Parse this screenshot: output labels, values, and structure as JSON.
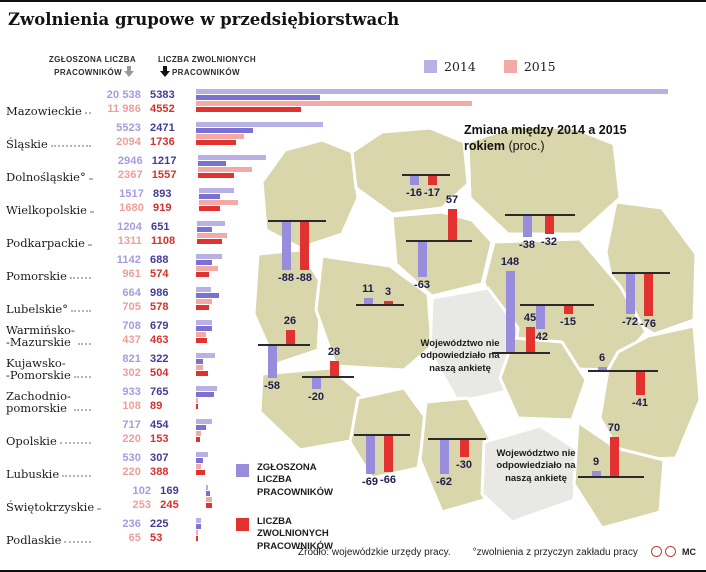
{
  "title": "Zwolnienia grupowe w przedsiębiorstwach",
  "header": {
    "col1_line1": "ZGŁOSZONA LICZBA",
    "col1_line2": "PRACOWNIKÓW",
    "col2_line1": "LICZBA ZWOLNIONYCH",
    "col2_line2": "PRACOWNIKÓW",
    "legend": [
      {
        "label": "2014",
        "color_key": "reported_2014"
      },
      {
        "label": "2015",
        "color_key": "reported_2015"
      }
    ]
  },
  "colors": {
    "reported_2014": "#b9b1e6",
    "laidoff_2014": "#7b71d1",
    "reported_2015": "#f3aaa7",
    "laidoff_2015": "#e23230",
    "map_purple": "#978ddc",
    "map_red": "#e23230",
    "map_fill": "#d9d6ac",
    "map_nodata": "#e8e8e4",
    "text_reported_2014": "#a59ce1",
    "text_laidoff_2014": "#433c96",
    "text_reported_2015": "#ee9e9b",
    "text_laidoff_2015": "#d7302c"
  },
  "regions": [
    {
      "name_lines": [
        "Mazowieckie"
      ],
      "r2014": "20 538",
      "z2014": "5383",
      "r2015": "11 986",
      "z2015": "4552"
    },
    {
      "name_lines": [
        "Śląskie"
      ],
      "r2014": "5523",
      "z2014": "2471",
      "r2015": "2094",
      "z2015": "1736"
    },
    {
      "name_lines": [
        "Dolnośląskie°"
      ],
      "r2014": "2946",
      "z2014": "1217",
      "r2015": "2367",
      "z2015": "1557"
    },
    {
      "name_lines": [
        "Wielkopolskie"
      ],
      "r2014": "1517",
      "z2014": "893",
      "r2015": "1680",
      "z2015": "919"
    },
    {
      "name_lines": [
        "Podkarpackie"
      ],
      "r2014": "1204",
      "z2014": "651",
      "r2015": "1311",
      "z2015": "1108"
    },
    {
      "name_lines": [
        "Pomorskie"
      ],
      "r2014": "1142",
      "z2014": "688",
      "r2015": "961",
      "z2015": "574"
    },
    {
      "name_lines": [
        "Lubelskie°"
      ],
      "r2014": "664",
      "z2014": "986",
      "r2015": "705",
      "z2015": "578"
    },
    {
      "name_lines": [
        "Warmińsko-",
        "-Mazurskie"
      ],
      "r2014": "708",
      "z2014": "679",
      "r2015": "437",
      "z2015": "463"
    },
    {
      "name_lines": [
        "Kujawsko-",
        "-Pomorskie"
      ],
      "r2014": "821",
      "z2014": "322",
      "r2015": "302",
      "z2015": "504"
    },
    {
      "name_lines": [
        "Zachodnio-",
        "pomorskie"
      ],
      "r2014": "933",
      "z2014": "765",
      "r2015": "108",
      "z2015": "89"
    },
    {
      "name_lines": [
        "Opolskie"
      ],
      "r2014": "717",
      "z2014": "454",
      "r2015": "220",
      "z2015": "153"
    },
    {
      "name_lines": [
        "Lubuskie"
      ],
      "r2014": "530",
      "z2014": "307",
      "r2015": "220",
      "z2015": "388"
    },
    {
      "name_lines": [
        "Świętokrzyskie"
      ],
      "r2014": "102",
      "z2014": "169",
      "r2015": "253",
      "z2015": "245"
    },
    {
      "name_lines": [
        "Podlaskie"
      ],
      "r2014": "236",
      "z2014": "225",
      "r2015": "65",
      "z2015": "53"
    }
  ],
  "map": {
    "title_line1": "Zmiana między 2014 a 2015",
    "title_bold2": "rokiem",
    "title_suffix": "(proc.)",
    "no_response_note": "Województwo nie odpowiedziało na naszą ankietę",
    "legend": [
      {
        "label": "ZGŁOSZONA LICZBA PRACOWNIKÓW",
        "color_key": "map_purple"
      },
      {
        "label": "LICZBA ZWOLNIONYCH PRACOWNIKÓW",
        "color_key": "map_red"
      }
    ]
  },
  "map_bars": [
    {
      "id": "zachodniopomorskie",
      "reported_change": -88,
      "laid_change": -88
    },
    {
      "id": "pomorskie",
      "reported_change": -16,
      "laid_change": -17
    },
    {
      "id": "warminsko-mazurskie",
      "reported_change": -38,
      "laid_change": -32
    },
    {
      "id": "podlaskie",
      "reported_change": -72,
      "laid_change": -76
    },
    {
      "id": "kujawsko-pomorskie",
      "reported_change": -63,
      "laid_change": 57
    },
    {
      "id": "mazowieckie",
      "reported_change": -42,
      "laid_change": -15
    },
    {
      "id": "lubelskie",
      "reported_change": 6,
      "laid_change": -41
    },
    {
      "id": "lubuskie",
      "reported_change": -58,
      "laid_change": 26
    },
    {
      "id": "wielkopolskie",
      "reported_change": 11,
      "laid_change": 3
    },
    {
      "id": "dolnoslaskie",
      "reported_change": -20,
      "laid_change": 28
    },
    {
      "id": "opolskie",
      "reported_change": -69,
      "laid_change": -66
    },
    {
      "id": "slaskie",
      "reported_change": -62,
      "laid_change": -30
    },
    {
      "id": "swietokrzyskie",
      "reported_change": 148,
      "laid_change": 45
    },
    {
      "id": "podkarpackie",
      "reported_change": 9,
      "laid_change": 70
    }
  ],
  "chart_data": [
    {
      "type": "bar",
      "orientation": "horizontal",
      "title": "Zwolnienia grupowe w przedsiębiorstwach",
      "legend": [
        "2014",
        "2015"
      ],
      "categories": [
        "Mazowieckie",
        "Śląskie",
        "Dolnośląskie",
        "Wielkopolskie",
        "Podkarpackie",
        "Pomorskie",
        "Lubelskie",
        "Warmińsko-Mazurskie",
        "Kujawsko-Pomorskie",
        "Zachodniopomorskie",
        "Opolskie",
        "Lubuskie",
        "Świętokrzyskie",
        "Podlaskie"
      ],
      "series": [
        {
          "name": "Zgłoszona liczba pracowników 2014",
          "values": [
            20538,
            5523,
            2946,
            1517,
            1204,
            1142,
            664,
            708,
            821,
            933,
            717,
            530,
            102,
            236
          ]
        },
        {
          "name": "Liczba zwolnionych pracowników 2014",
          "values": [
            5383,
            2471,
            1217,
            893,
            651,
            688,
            986,
            679,
            322,
            765,
            454,
            307,
            169,
            225
          ]
        },
        {
          "name": "Zgłoszona liczba pracowników 2015",
          "values": [
            11986,
            2094,
            2367,
            1680,
            1311,
            961,
            705,
            437,
            302,
            108,
            220,
            220,
            253,
            65
          ]
        },
        {
          "name": "Liczba zwolnionych pracowników 2015",
          "values": [
            4552,
            1736,
            1557,
            919,
            1108,
            574,
            578,
            463,
            504,
            89,
            153,
            388,
            245,
            53
          ]
        }
      ]
    },
    {
      "type": "bar",
      "title": "Zmiana między 2014 a 2015 rokiem (proc.)",
      "categories": [
        "Zachodniopomorskie",
        "Pomorskie",
        "Warmińsko-Mazurskie",
        "Podlaskie",
        "Kujawsko-Pomorskie",
        "Mazowieckie",
        "Lubelskie",
        "Lubuskie",
        "Wielkopolskie",
        "Dolnośląskie",
        "Opolskie",
        "Śląskie",
        "Świętokrzyskie",
        "Podkarpackie"
      ],
      "series": [
        {
          "name": "Zgłoszona liczba pracowników (zmiana proc.)",
          "values": [
            -88,
            -16,
            -38,
            -72,
            -63,
            -42,
            6,
            -58,
            11,
            -20,
            -69,
            -62,
            148,
            9
          ]
        },
        {
          "name": "Liczba zwolnionych pracowników (zmiana proc.)",
          "values": [
            -88,
            -17,
            -32,
            -76,
            57,
            -15,
            -41,
            26,
            3,
            28,
            -66,
            -30,
            45,
            70
          ]
        }
      ],
      "no_response_note": "Województwo nie odpowiedziało na naszą ankietę"
    }
  ],
  "footer": {
    "source": "Źródło: wojewódzkie urzędy pracy.",
    "note": "°zwolnienia z przyczyn zakładu pracy",
    "credit": "MC"
  }
}
